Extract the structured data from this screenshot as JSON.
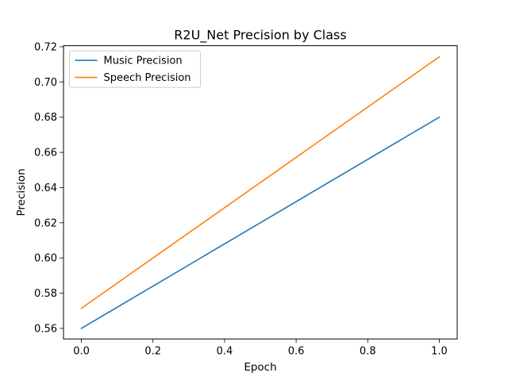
{
  "chart_data": {
    "type": "line",
    "title": "R2U_Net Precision by Class",
    "xlabel": "Epoch",
    "ylabel": "Precision",
    "xlim": [
      -0.05,
      1.05
    ],
    "ylim": [
      0.554,
      0.7206
    ],
    "x": [
      0,
      1
    ],
    "series": [
      {
        "name": "Music Precision",
        "values": [
          0.56,
          0.68
        ],
        "color": "#1f77b4"
      },
      {
        "name": "Speech Precision",
        "values": [
          0.5714,
          0.7143
        ],
        "color": "#ff7f0e"
      }
    ],
    "x_ticks": [
      0.0,
      0.2,
      0.4,
      0.6,
      0.8,
      1.0
    ],
    "x_tick_labels": [
      "0.0",
      "0.2",
      "0.4",
      "0.6",
      "0.8",
      "1.0"
    ],
    "y_ticks": [
      0.56,
      0.58,
      0.6,
      0.62,
      0.64,
      0.66,
      0.68,
      0.7,
      0.72
    ],
    "y_tick_labels": [
      "0.56",
      "0.58",
      "0.60",
      "0.62",
      "0.64",
      "0.66",
      "0.68",
      "0.70",
      "0.72"
    ],
    "grid": false,
    "legend_position": "upper-left"
  }
}
